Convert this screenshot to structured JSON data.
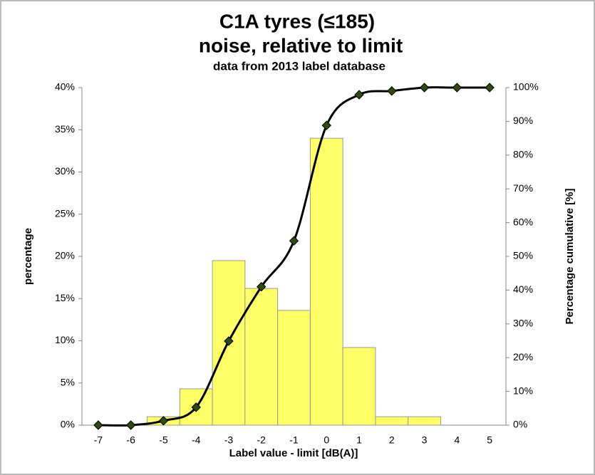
{
  "chart_data": {
    "type": "bar",
    "title": "C1A tyres (≤185)",
    "subtitle": "noise, relative to limit",
    "note": "data from 2013 label database",
    "x_label": "Label value - limit [dB(A)]",
    "y_label": "percentage",
    "y2_label": "Percentage cumulative [%]",
    "categories": [
      "-7",
      "-6",
      "-5",
      "-4",
      "-3",
      "-2",
      "-1",
      "0",
      "1",
      "2",
      "3",
      "4",
      "5"
    ],
    "series": [
      {
        "type": "bar",
        "color": "#ffff66",
        "values": [
          0,
          0,
          1,
          4.3,
          19.5,
          16.2,
          13.6,
          34,
          9.2,
          1,
          1,
          0,
          0
        ]
      },
      {
        "type": "line",
        "axis": "y2",
        "color": "#000000",
        "marker_color": "#2f4a10",
        "values": [
          0,
          0,
          1.3,
          5.3,
          24.9,
          41,
          54.6,
          88.8,
          97.9,
          99,
          100,
          100,
          100
        ]
      }
    ],
    "ylim": [
      0,
      40
    ],
    "yticks": [
      {
        "value": 0,
        "label": "0%"
      },
      {
        "value": 5,
        "label": "5%"
      },
      {
        "value": 10,
        "label": "10%"
      },
      {
        "value": 15,
        "label": "15%"
      },
      {
        "value": 20,
        "label": "20%"
      },
      {
        "value": 25,
        "label": "25%"
      },
      {
        "value": 30,
        "label": "30%"
      },
      {
        "value": 35,
        "label": "35%"
      },
      {
        "value": 40,
        "label": "40%"
      }
    ],
    "y2lim": [
      0,
      100
    ],
    "y2ticks": [
      {
        "value": 0,
        "label": "0%"
      },
      {
        "value": 10,
        "label": "10%"
      },
      {
        "value": 20,
        "label": "20%"
      },
      {
        "value": 30,
        "label": "30%"
      },
      {
        "value": 40,
        "label": "40%"
      },
      {
        "value": 50,
        "label": "50%"
      },
      {
        "value": 60,
        "label": "60%"
      },
      {
        "value": 70,
        "label": "70%"
      },
      {
        "value": 80,
        "label": "80%"
      },
      {
        "value": 90,
        "label": "90%"
      },
      {
        "value": 100,
        "label": "100%"
      }
    ],
    "grid": false
  }
}
